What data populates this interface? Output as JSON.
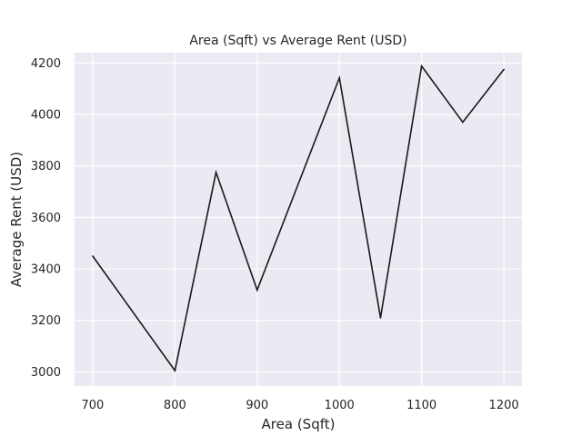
{
  "chart_data": {
    "type": "line",
    "title": "Area (Sqft) vs Average Rent (USD)",
    "xlabel": "Area (Sqft)",
    "ylabel": "Average Rent (USD)",
    "x": [
      700,
      800,
      850,
      900,
      1000,
      1050,
      1100,
      1150,
      1200
    ],
    "series": [
      {
        "values": [
          3450,
          3005,
          3775,
          3318,
          4142,
          3210,
          4188,
          3970,
          4175
        ]
      }
    ],
    "xlim": [
      678,
      1222
    ],
    "ylim": [
      2945,
      4240
    ],
    "xticks": [
      700,
      800,
      900,
      1000,
      1100,
      1200
    ],
    "yticks": [
      3000,
      3200,
      3400,
      3600,
      3800,
      4000,
      4200
    ],
    "grid": true,
    "legend": "none",
    "colors": {
      "plot_background": "#eaeaf2",
      "grid": "#ffffff",
      "line": "#1a1a1a",
      "text": "#262626"
    }
  }
}
